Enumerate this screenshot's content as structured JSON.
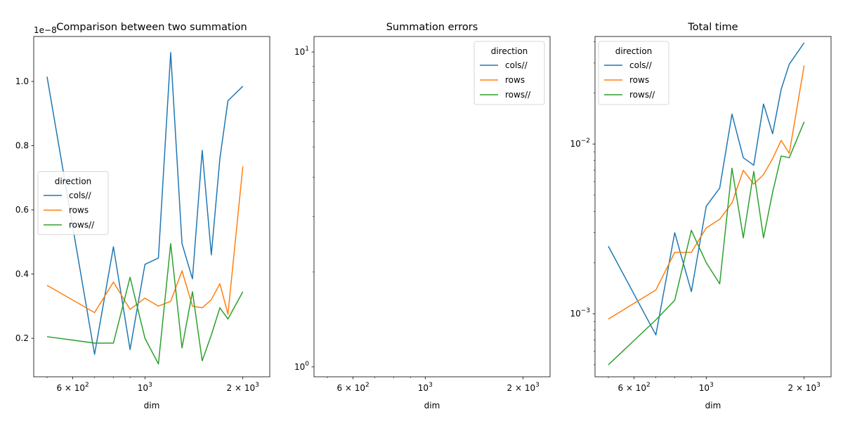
{
  "figure": {
    "colors": {
      "cols//": "#1f77b4",
      "rows": "#ff7f0e",
      "rows//": "#2ca02c"
    }
  },
  "chart_data": [
    {
      "type": "line",
      "title": "Comparison between two summation",
      "xlabel": "dim",
      "ylabel": "",
      "xscale": "log",
      "yscale": "linear",
      "xlim": [
        455,
        2420
      ],
      "ylim": [
        0.08,
        1.14
      ],
      "y_offset_label": "1e−8",
      "xticks": [
        {
          "value": 600,
          "label": "6 × 10²"
        },
        {
          "value": 1000,
          "label": "10³"
        },
        {
          "value": 2000,
          "label": "2 × 10³"
        }
      ],
      "yticks": [
        {
          "value": 0.2,
          "label": "0.2"
        },
        {
          "value": 0.4,
          "label": "0.4"
        },
        {
          "value": 0.6,
          "label": "0.6"
        },
        {
          "value": 0.8,
          "label": "0.8"
        },
        {
          "value": 1.0,
          "label": "1.0"
        }
      ],
      "legend": {
        "title": "direction",
        "placement": "center-left"
      },
      "x": [
        500,
        700,
        800,
        900,
        1000,
        1100,
        1200,
        1300,
        1400,
        1500,
        1600,
        1700,
        1800,
        2000
      ],
      "series": [
        {
          "name": "cols//",
          "values": [
            1.015,
            0.15,
            0.485,
            0.165,
            0.43,
            0.45,
            1.09,
            0.495,
            0.385,
            0.785,
            0.46,
            0.76,
            0.94,
            0.985
          ]
        },
        {
          "name": "rows",
          "values": [
            0.365,
            0.28,
            0.375,
            0.29,
            0.325,
            0.3,
            0.315,
            0.41,
            0.3,
            0.295,
            0.32,
            0.37,
            0.275,
            0.735
          ]
        },
        {
          "name": "rows//",
          "values": [
            0.205,
            0.185,
            0.185,
            0.39,
            0.2,
            0.12,
            0.495,
            0.17,
            0.345,
            0.13,
            0.21,
            0.295,
            0.26,
            0.345
          ]
        }
      ]
    },
    {
      "type": "line",
      "title": "Summation errors",
      "xlabel": "dim",
      "ylabel": "",
      "xscale": "log",
      "yscale": "log",
      "xlim": [
        455,
        2420
      ],
      "ylim": [
        0.93,
        11.2
      ],
      "xticks": [
        {
          "value": 600,
          "label": "6 × 10²"
        },
        {
          "value": 1000,
          "label": "10³"
        },
        {
          "value": 2000,
          "label": "2 × 10³"
        }
      ],
      "yticks": [
        {
          "value": 1,
          "label": "10⁰"
        },
        {
          "value": 10,
          "label": "10¹"
        }
      ],
      "legend": {
        "title": "direction",
        "placement": "top-right"
      },
      "x": [],
      "series": [
        {
          "name": "cols//",
          "values": []
        },
        {
          "name": "rows",
          "values": []
        },
        {
          "name": "rows//",
          "values": []
        }
      ]
    },
    {
      "type": "line",
      "title": "Total time",
      "xlabel": "dim",
      "ylabel": "",
      "xscale": "log",
      "yscale": "log",
      "xlim": [
        455,
        2420
      ],
      "ylim": [
        0.000425,
        0.043
      ],
      "xticks": [
        {
          "value": 600,
          "label": "6 × 10²"
        },
        {
          "value": 1000,
          "label": "10³"
        },
        {
          "value": 2000,
          "label": "2 × 10³"
        }
      ],
      "yticks": [
        {
          "value": 0.001,
          "label": "10⁻³"
        },
        {
          "value": 0.01,
          "label": "10⁻²"
        }
      ],
      "legend": {
        "title": "direction",
        "placement": "top-left"
      },
      "x": [
        500,
        700,
        800,
        900,
        1000,
        1100,
        1200,
        1300,
        1400,
        1500,
        1600,
        1700,
        1800,
        2000
      ],
      "series": [
        {
          "name": "cols//",
          "values": [
            0.0025,
            0.00075,
            0.003,
            0.00135,
            0.0043,
            0.0055,
            0.015,
            0.0083,
            0.0075,
            0.0172,
            0.0115,
            0.021,
            0.0295,
            0.0395
          ]
        },
        {
          "name": "rows",
          "values": [
            0.00093,
            0.00138,
            0.0023,
            0.0023,
            0.0032,
            0.0036,
            0.0045,
            0.007,
            0.0058,
            0.0066,
            0.0082,
            0.0105,
            0.0088,
            0.029
          ]
        },
        {
          "name": "rows//",
          "values": [
            0.0005,
            0.00092,
            0.0012,
            0.0031,
            0.002,
            0.0015,
            0.0072,
            0.0028,
            0.0069,
            0.0028,
            0.0052,
            0.0085,
            0.0083,
            0.0135
          ]
        }
      ]
    }
  ]
}
